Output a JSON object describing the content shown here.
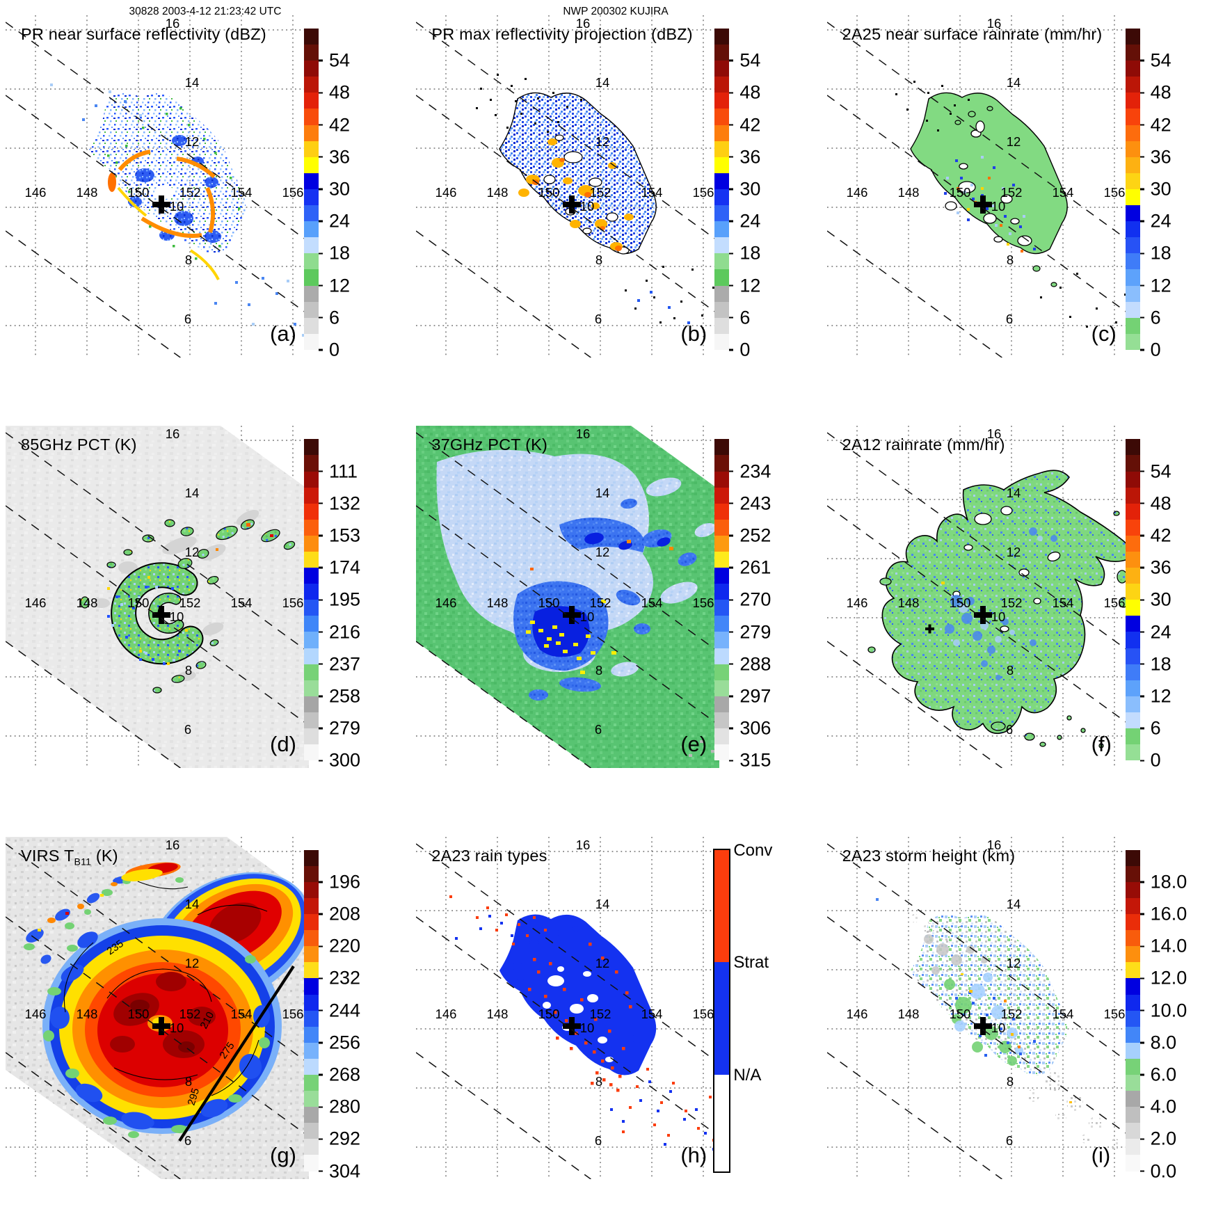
{
  "headers": {
    "left": "30828 2003-4-12 21:23:42 UTC",
    "center": "NWP 200302 KUJIRA"
  },
  "geo": {
    "lon_labels": [
      "146",
      "148",
      "150",
      "152",
      "154",
      "156"
    ],
    "lat_labels": [
      "16",
      "14",
      "12",
      "10",
      "8",
      "6"
    ]
  },
  "panels": [
    {
      "id": "a",
      "letter": "(a)",
      "title": "PR near surface reflectivity (dBZ)",
      "title_sub": "",
      "title_suffix": "",
      "colorbar": {
        "type": "segments",
        "ticks": [
          "54",
          "48",
          "42",
          "36",
          "30",
          "24",
          "18",
          "12",
          "6",
          "0"
        ],
        "segments": [
          "#3c0a06",
          "#641007",
          "#8f0b06",
          "#bb1607",
          "#e32209",
          "#f84c0b",
          "#fd7d0d",
          "#fecf12",
          "#ffff00",
          "#0000e0",
          "#1532f2",
          "#2e62f7",
          "#58a0fb",
          "#c3ddfe",
          "#8fdc8f",
          "#5dc95d",
          "#ababab",
          "#c3c3c3",
          "#dedede",
          "#f6f6f6"
        ]
      }
    },
    {
      "id": "b",
      "letter": "(b)",
      "title": "PR max reflectivity projection (dBZ)",
      "title_sub": "",
      "title_suffix": "",
      "colorbar": {
        "type": "segments",
        "ticks": [
          "54",
          "48",
          "42",
          "36",
          "30",
          "24",
          "18",
          "12",
          "6",
          "0"
        ],
        "segments": [
          "#3c0a06",
          "#641007",
          "#8f0b06",
          "#bb1607",
          "#e32209",
          "#f84c0b",
          "#fd7d0d",
          "#fecf12",
          "#ffff00",
          "#0000e0",
          "#1532f2",
          "#2e62f7",
          "#58a0fb",
          "#c3ddfe",
          "#8fdc8f",
          "#5dc95d",
          "#ababab",
          "#c3c3c3",
          "#dedede",
          "#f6f6f6"
        ]
      }
    },
    {
      "id": "c",
      "letter": "(c)",
      "title": "2A25 near surface rainrate (mm/hr)",
      "title_sub": "",
      "title_suffix": "",
      "colorbar": {
        "type": "segments",
        "ticks": [
          "54",
          "48",
          "42",
          "36",
          "30",
          "24",
          "18",
          "12",
          "6",
          "0"
        ],
        "segments": [
          "#3c0a06",
          "#641007",
          "#8f0b06",
          "#bb1607",
          "#e32209",
          "#f8430b",
          "#fd6c0d",
          "#fd900f",
          "#fdb112",
          "#fdd414",
          "#ffff00",
          "#0000e0",
          "#1130f0",
          "#2752f5",
          "#3f7cf8",
          "#5da2fb",
          "#8abefd",
          "#c3dcfe",
          "#74d274",
          "#95df95"
        ]
      }
    },
    {
      "id": "d",
      "letter": "(d)",
      "title": "85GHz PCT (K)",
      "title_sub": "",
      "title_suffix": "",
      "colorbar": {
        "type": "segments",
        "ticks": [
          "111",
          "132",
          "153",
          "174",
          "195",
          "216",
          "237",
          "258",
          "279",
          "300"
        ],
        "segments": [
          "#3c0a06",
          "#6b1007",
          "#9b0c06",
          "#cc1808",
          "#f03009",
          "#fb5f0c",
          "#fd8d0e",
          "#fedd18",
          "#0000e0",
          "#0f28ee",
          "#2456f4",
          "#3f86f8",
          "#6fb0fb",
          "#b3d7fe",
          "#77d277",
          "#99dd99",
          "#a5a5a5",
          "#c2c2c2",
          "#dedede",
          "#f7f7f7"
        ]
      }
    },
    {
      "id": "e",
      "letter": "(e)",
      "title": "37GHz PCT (K)",
      "title_sub": "",
      "title_suffix": "",
      "colorbar": {
        "type": "segments",
        "ticks": [
          "234",
          "243",
          "252",
          "261",
          "270",
          "279",
          "288",
          "297",
          "306",
          "315"
        ],
        "segments": [
          "#3c0a06",
          "#6b1007",
          "#9b0c06",
          "#cc1808",
          "#ef3009",
          "#fb5f0c",
          "#fd9a10",
          "#feea1c",
          "#0000e0",
          "#0f28ee",
          "#2456f4",
          "#4286f8",
          "#77b2fc",
          "#bcdafe",
          "#77d277",
          "#99dd99",
          "#a8a8a8",
          "#c6c6c6",
          "#e2e2e2",
          "#f8f8f8"
        ]
      }
    },
    {
      "id": "f",
      "letter": "(f)",
      "title": "2A12 rainrate (mm/hr)",
      "title_sub": "",
      "title_suffix": "",
      "colorbar": {
        "type": "segments",
        "ticks": [
          "54",
          "48",
          "42",
          "36",
          "30",
          "24",
          "18",
          "12",
          "6",
          "0"
        ],
        "segments": [
          "#3c0a06",
          "#641007",
          "#8f0b06",
          "#bb1607",
          "#e32209",
          "#f8430b",
          "#fd6c0d",
          "#fd900f",
          "#fdb112",
          "#fdd414",
          "#ffff00",
          "#0000e0",
          "#1130f0",
          "#2752f5",
          "#3f7cf8",
          "#5da2fb",
          "#8abefd",
          "#c3dcfe",
          "#74d274",
          "#95df95"
        ]
      }
    },
    {
      "id": "g",
      "letter": "(g)",
      "title": "VIRS T",
      "title_sub": "B11",
      "title_suffix": " (K)",
      "contour_labels": [
        "235",
        "210",
        "275",
        "295"
      ],
      "colorbar": {
        "type": "segments",
        "ticks": [
          "196",
          "208",
          "220",
          "232",
          "244",
          "256",
          "268",
          "280",
          "292",
          "304"
        ],
        "segments": [
          "#3c0a06",
          "#671007",
          "#970c06",
          "#c41708",
          "#ea2d09",
          "#f85c0c",
          "#fd8f0e",
          "#fede19",
          "#0000e0",
          "#0f28ee",
          "#2456f4",
          "#4286f8",
          "#77b2fc",
          "#bcdafe",
          "#77d277",
          "#99dd99",
          "#a8a8a8",
          "#c6c6c6",
          "#e2e2e2",
          "#f8f8f8"
        ]
      }
    },
    {
      "id": "h",
      "letter": "(h)",
      "title": "2A23 rain types",
      "title_sub": "",
      "title_suffix": "",
      "colorbar": {
        "type": "categorical",
        "categories": [
          {
            "label": "Conv",
            "color": "#fb3d0d",
            "pct": 35
          },
          {
            "label": "Strat",
            "color": "#1432f0",
            "pct": 35
          },
          {
            "label": "N/A",
            "color": "#ffffff",
            "pct": 30
          }
        ]
      }
    },
    {
      "id": "i",
      "letter": "(i)",
      "title": "2A23 storm height (km)",
      "title_sub": "",
      "title_suffix": "",
      "colorbar": {
        "type": "segments",
        "ticks": [
          "18.0",
          "16.0",
          "14.0",
          "12.0",
          "10.0",
          "8.0",
          "6.0",
          "4.0",
          "2.0",
          "0.0"
        ],
        "segments": [
          "#3c0a06",
          "#671007",
          "#970c06",
          "#c41708",
          "#ea2d09",
          "#f85c0c",
          "#fd8f0e",
          "#fede19",
          "#0000e0",
          "#0f28ee",
          "#2456f4",
          "#4286f8",
          "#a6d0fd",
          "#77d277",
          "#99dd99",
          "#a8a8a8",
          "#bfbfbf",
          "#d8d8d8",
          "#ebebeb",
          "#f9f9f9"
        ]
      }
    }
  ]
}
